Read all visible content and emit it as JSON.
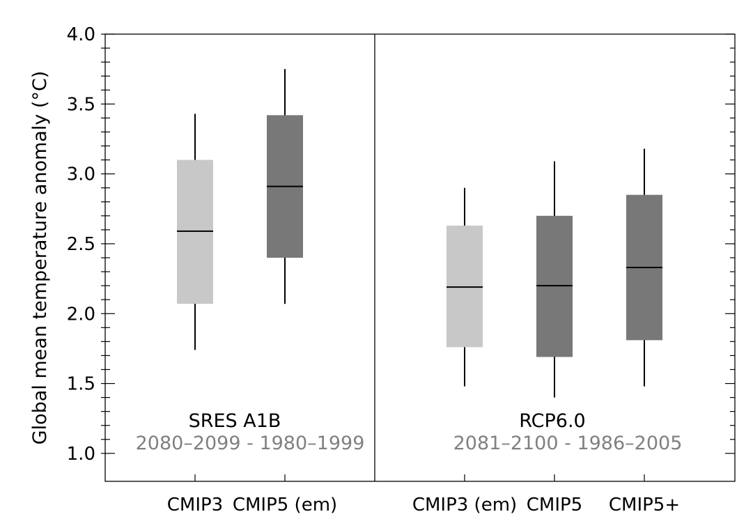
{
  "chart_data": {
    "type": "box",
    "ylabel": "Global mean temperature anomaly (°C)",
    "ylim": [
      0.8,
      4.0
    ],
    "yticks": [
      1.0,
      1.5,
      2.0,
      2.5,
      3.0,
      3.5,
      4.0
    ],
    "ytick_labels": [
      "1.0",
      "1.5",
      "2.0",
      "2.5",
      "3.0",
      "3.5",
      "4.0"
    ],
    "panels": [
      {
        "scenario": "SRES A1B",
        "period": "2080–2099 - 1980–1999",
        "boxes": [
          {
            "label": "CMIP3",
            "fill": "#c8c8c8",
            "whisker_low": 1.74,
            "q1": 2.07,
            "median": 2.59,
            "q3": 3.1,
            "whisker_high": 3.43
          },
          {
            "label": "CMIP5 (em)",
            "fill": "#787878",
            "whisker_low": 2.07,
            "q1": 2.4,
            "median": 2.91,
            "q3": 3.42,
            "whisker_high": 3.75
          }
        ]
      },
      {
        "scenario": "RCP6.0",
        "period": "2081–2100 - 1986–2005",
        "boxes": [
          {
            "label": "CMIP3 (em)",
            "fill": "#c8c8c8",
            "whisker_low": 1.48,
            "q1": 1.76,
            "median": 2.19,
            "q3": 2.63,
            "whisker_high": 2.9
          },
          {
            "label": "CMIP5",
            "fill": "#787878",
            "whisker_low": 1.4,
            "q1": 1.69,
            "median": 2.2,
            "q3": 2.7,
            "whisker_high": 3.09
          },
          {
            "label": "CMIP5+",
            "fill": "#787878",
            "whisker_low": 1.48,
            "q1": 1.81,
            "median": 2.33,
            "q3": 2.85,
            "whisker_high": 3.18
          }
        ]
      }
    ],
    "colors": {
      "light_box": "#c8c8c8",
      "dark_box": "#787878",
      "period_text": "#808080",
      "axis": "#000000"
    }
  }
}
